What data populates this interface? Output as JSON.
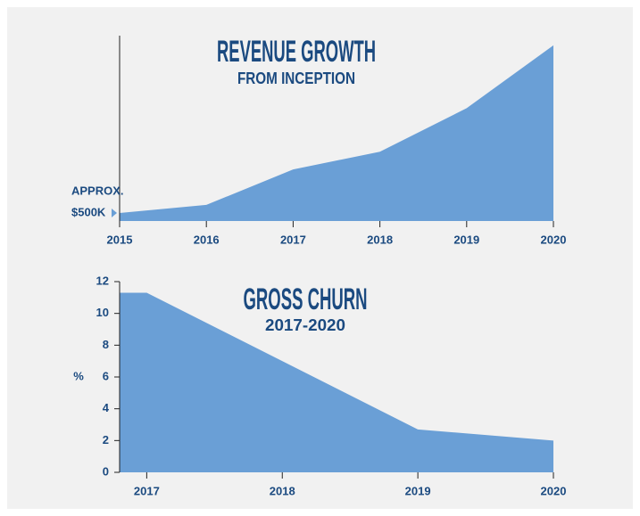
{
  "chart_data": [
    {
      "type": "area",
      "title": "REVENUE GROWTH",
      "subtitle": "FROM INCEPTION",
      "x": [
        2015,
        2016,
        2017,
        2018,
        2019,
        2020
      ],
      "values": [
        500,
        1000,
        3200,
        4300,
        7000,
        10900
      ],
      "xlim": [
        2015,
        2020
      ],
      "xticks": [
        2015,
        2016,
        2017,
        2018,
        2019,
        2020
      ],
      "ylim": [
        0,
        11500
      ],
      "annotation": [
        "APPROX.",
        "$500K"
      ],
      "color": "#6a9fd6"
    },
    {
      "type": "area",
      "title": "GROSS CHURN",
      "subtitle": "2017-2020",
      "y_label": "%",
      "x": [
        2016.8,
        2017,
        2019,
        2020
      ],
      "values": [
        11.3,
        11.3,
        2.7,
        2.0
      ],
      "xlim": [
        2016.8,
        2020
      ],
      "xticks": [
        2017,
        2018,
        2019,
        2020
      ],
      "ylim": [
        0,
        12
      ],
      "yticks": [
        0,
        2,
        4,
        6,
        8,
        10,
        12
      ],
      "color": "#6a9fd6"
    }
  ]
}
